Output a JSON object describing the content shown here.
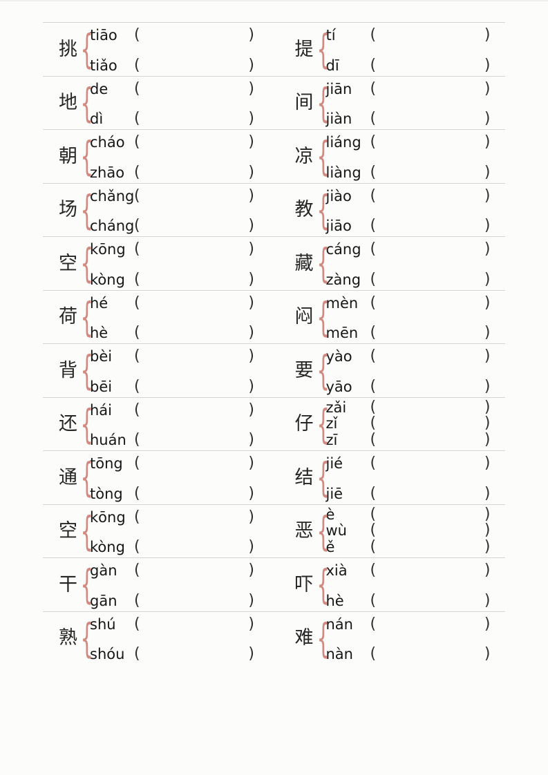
{
  "colors": {
    "page_background": "#fcfcfa",
    "divider_line": "#d4d4d2",
    "brace": "#d08a82",
    "character_text": "#262626",
    "pinyin_text": "#161616",
    "paren_text": "#2e2e2e"
  },
  "punctuation": {
    "brace": "{",
    "open_paren": "(",
    "close_paren": ")"
  },
  "worksheet": {
    "rows": [
      {
        "cells": [
          {
            "char": "挑",
            "readings": [
              "tiāo",
              "tiǎo"
            ]
          },
          {
            "char": "提",
            "readings": [
              "tí",
              "dī"
            ]
          }
        ]
      },
      {
        "cells": [
          {
            "char": "地",
            "readings": [
              "de",
              "dì"
            ]
          },
          {
            "char": "间",
            "readings": [
              "jiān",
              "jiàn"
            ]
          }
        ]
      },
      {
        "cells": [
          {
            "char": "朝",
            "readings": [
              "cháo",
              "zhāo"
            ]
          },
          {
            "char": "凉",
            "readings": [
              "liáng",
              "liàng"
            ]
          }
        ]
      },
      {
        "cells": [
          {
            "char": "场",
            "readings": [
              "chǎng",
              "cháng"
            ]
          },
          {
            "char": "教",
            "readings": [
              "jiào",
              "jiāo"
            ]
          }
        ]
      },
      {
        "cells": [
          {
            "char": "空",
            "readings": [
              "kōng",
              "kòng"
            ]
          },
          {
            "char": "藏",
            "readings": [
              "cáng",
              "zàng"
            ]
          }
        ]
      },
      {
        "cells": [
          {
            "char": "荷",
            "readings": [
              "hé",
              "hè"
            ]
          },
          {
            "char": "闷",
            "readings": [
              "mèn",
              "mēn"
            ]
          }
        ]
      },
      {
        "cells": [
          {
            "char": "背",
            "readings": [
              "bèi",
              "bēi"
            ]
          },
          {
            "char": "要",
            "readings": [
              "yào",
              "yāo"
            ]
          }
        ]
      },
      {
        "cells": [
          {
            "char": "还",
            "readings": [
              "hái",
              "huán"
            ]
          },
          {
            "char": "仔",
            "readings": [
              "zǎi",
              "zǐ",
              "zī"
            ]
          }
        ]
      },
      {
        "cells": [
          {
            "char": "通",
            "readings": [
              "tōng",
              "tòng"
            ]
          },
          {
            "char": "结",
            "readings": [
              "jié",
              "jiē"
            ]
          }
        ]
      },
      {
        "cells": [
          {
            "char": "空",
            "readings": [
              "kōng",
              "kòng"
            ]
          },
          {
            "char": "恶",
            "readings": [
              "è",
              "wù",
              "ě"
            ]
          }
        ]
      },
      {
        "cells": [
          {
            "char": "干",
            "readings": [
              "gàn",
              "gān"
            ]
          },
          {
            "char": "吓",
            "readings": [
              "xià",
              "hè"
            ]
          }
        ]
      },
      {
        "cells": [
          {
            "char": "熟",
            "readings": [
              "shú",
              "shóu"
            ]
          },
          {
            "char": "难",
            "readings": [
              "nán",
              "nàn"
            ]
          }
        ]
      }
    ]
  }
}
